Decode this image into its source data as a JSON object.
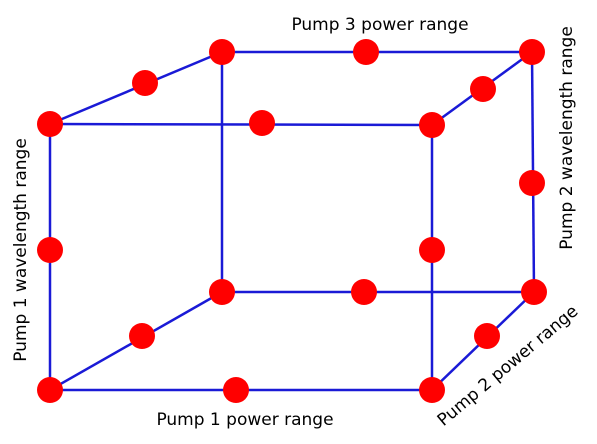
{
  "labels": {
    "pump3_power": "Pump 3 power range",
    "pump1_power": "Pump 1 power range",
    "pump1_wavelength": "Pump 1 wavelength range",
    "pump2_wavelength": "Pump 2 wavelength range",
    "pump2_power": "Pump 2 power range"
  }
}
